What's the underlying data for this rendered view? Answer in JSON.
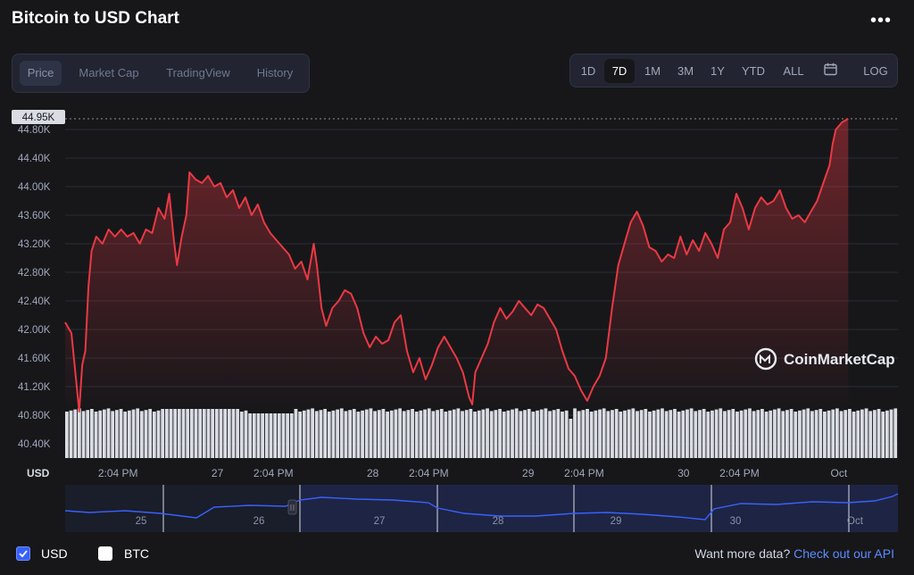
{
  "header": {
    "title": "Bitcoin to USD Chart",
    "more": "•••"
  },
  "tabs": [
    "Price",
    "Market Cap",
    "TradingView",
    "History"
  ],
  "active_tab": "Price",
  "ranges": [
    "1D",
    "7D",
    "1M",
    "3M",
    "1Y",
    "YTD",
    "ALL",
    "LOG"
  ],
  "active_range": "7D",
  "colors": {
    "line": "#ea3943",
    "volume": "#d9dce3",
    "nav_line": "#3861fb",
    "accent": "#3861fb"
  },
  "watermark": "CoinMarketCap",
  "footer": {
    "usd_label": "USD",
    "btc_label": "BTC",
    "want_more": "Want more data?",
    "api_link": "Check out our API"
  },
  "chart_data": {
    "type": "line",
    "y_unit_label": "USD",
    "ylim": [
      40.2,
      44.95
    ],
    "y_ticks": [
      "40.40K",
      "40.80K",
      "41.20K",
      "41.60K",
      "42.00K",
      "42.40K",
      "42.80K",
      "43.20K",
      "43.60K",
      "44.00K",
      "44.40K",
      "44.80K"
    ],
    "current_price_label": "44.95K",
    "current_price": 44.95,
    "x_ticks": [
      {
        "label": "2:04 PM",
        "t": 0.34
      },
      {
        "label": "27",
        "t": 0.98
      },
      {
        "label": "2:04 PM",
        "t": 1.34
      },
      {
        "label": "28",
        "t": 1.98
      },
      {
        "label": "2:04 PM",
        "t": 2.34
      },
      {
        "label": "29",
        "t": 2.98
      },
      {
        "label": "2:04 PM",
        "t": 3.34
      },
      {
        "label": "30",
        "t": 3.98
      },
      {
        "label": "2:04 PM",
        "t": 4.34
      },
      {
        "label": "Oct",
        "t": 4.98
      }
    ],
    "xlim": [
      0,
      5.36
    ],
    "series": [
      {
        "points": [
          [
            0.0,
            42.1
          ],
          [
            0.04,
            41.95
          ],
          [
            0.07,
            41.3
          ],
          [
            0.09,
            40.85
          ],
          [
            0.11,
            41.5
          ],
          [
            0.13,
            41.7
          ],
          [
            0.15,
            42.6
          ],
          [
            0.17,
            43.1
          ],
          [
            0.2,
            43.3
          ],
          [
            0.24,
            43.2
          ],
          [
            0.28,
            43.4
          ],
          [
            0.32,
            43.3
          ],
          [
            0.36,
            43.4
          ],
          [
            0.4,
            43.3
          ],
          [
            0.44,
            43.35
          ],
          [
            0.48,
            43.2
          ],
          [
            0.52,
            43.4
          ],
          [
            0.56,
            43.35
          ],
          [
            0.6,
            43.7
          ],
          [
            0.64,
            43.55
          ],
          [
            0.67,
            43.9
          ],
          [
            0.7,
            43.25
          ],
          [
            0.72,
            42.9
          ],
          [
            0.75,
            43.3
          ],
          [
            0.78,
            43.6
          ],
          [
            0.8,
            44.2
          ],
          [
            0.84,
            44.1
          ],
          [
            0.88,
            44.05
          ],
          [
            0.92,
            44.15
          ],
          [
            0.96,
            44.0
          ],
          [
            1.0,
            44.05
          ],
          [
            1.04,
            43.85
          ],
          [
            1.08,
            43.95
          ],
          [
            1.12,
            43.7
          ],
          [
            1.16,
            43.85
          ],
          [
            1.2,
            43.6
          ],
          [
            1.24,
            43.75
          ],
          [
            1.28,
            43.5
          ],
          [
            1.32,
            43.35
          ],
          [
            1.36,
            43.25
          ],
          [
            1.4,
            43.15
          ],
          [
            1.44,
            43.05
          ],
          [
            1.48,
            42.85
          ],
          [
            1.52,
            42.95
          ],
          [
            1.56,
            42.7
          ],
          [
            1.6,
            43.2
          ],
          [
            1.62,
            42.9
          ],
          [
            1.65,
            42.3
          ],
          [
            1.68,
            42.05
          ],
          [
            1.72,
            42.3
          ],
          [
            1.76,
            42.4
          ],
          [
            1.8,
            42.55
          ],
          [
            1.84,
            42.5
          ],
          [
            1.88,
            42.3
          ],
          [
            1.92,
            41.95
          ],
          [
            1.96,
            41.75
          ],
          [
            2.0,
            41.9
          ],
          [
            2.04,
            41.8
          ],
          [
            2.08,
            41.85
          ],
          [
            2.12,
            42.1
          ],
          [
            2.16,
            42.2
          ],
          [
            2.2,
            41.7
          ],
          [
            2.24,
            41.4
          ],
          [
            2.28,
            41.6
          ],
          [
            2.32,
            41.3
          ],
          [
            2.36,
            41.5
          ],
          [
            2.4,
            41.75
          ],
          [
            2.44,
            41.9
          ],
          [
            2.48,
            41.75
          ],
          [
            2.52,
            41.6
          ],
          [
            2.56,
            41.4
          ],
          [
            2.6,
            41.05
          ],
          [
            2.62,
            40.95
          ],
          [
            2.64,
            41.4
          ],
          [
            2.68,
            41.6
          ],
          [
            2.72,
            41.8
          ],
          [
            2.76,
            42.1
          ],
          [
            2.8,
            42.3
          ],
          [
            2.84,
            42.15
          ],
          [
            2.88,
            42.25
          ],
          [
            2.92,
            42.4
          ],
          [
            2.96,
            42.3
          ],
          [
            3.0,
            42.2
          ],
          [
            3.04,
            42.35
          ],
          [
            3.08,
            42.3
          ],
          [
            3.12,
            42.15
          ],
          [
            3.16,
            42.0
          ],
          [
            3.2,
            41.7
          ],
          [
            3.24,
            41.45
          ],
          [
            3.28,
            41.35
          ],
          [
            3.32,
            41.15
          ],
          [
            3.36,
            41.0
          ],
          [
            3.4,
            41.2
          ],
          [
            3.44,
            41.35
          ],
          [
            3.48,
            41.6
          ],
          [
            3.52,
            42.3
          ],
          [
            3.56,
            42.9
          ],
          [
            3.6,
            43.2
          ],
          [
            3.64,
            43.5
          ],
          [
            3.68,
            43.65
          ],
          [
            3.72,
            43.45
          ],
          [
            3.76,
            43.15
          ],
          [
            3.8,
            43.1
          ],
          [
            3.84,
            42.95
          ],
          [
            3.88,
            43.05
          ],
          [
            3.92,
            43.0
          ],
          [
            3.96,
            43.3
          ],
          [
            4.0,
            43.05
          ],
          [
            4.04,
            43.25
          ],
          [
            4.08,
            43.1
          ],
          [
            4.12,
            43.35
          ],
          [
            4.16,
            43.2
          ],
          [
            4.2,
            43.0
          ],
          [
            4.24,
            43.4
          ],
          [
            4.28,
            43.5
          ],
          [
            4.32,
            43.9
          ],
          [
            4.36,
            43.7
          ],
          [
            4.4,
            43.4
          ],
          [
            4.44,
            43.7
          ],
          [
            4.48,
            43.85
          ],
          [
            4.52,
            43.75
          ],
          [
            4.56,
            43.8
          ],
          [
            4.6,
            43.95
          ],
          [
            4.64,
            43.7
          ],
          [
            4.68,
            43.55
          ],
          [
            4.72,
            43.6
          ],
          [
            4.76,
            43.5
          ],
          [
            4.8,
            43.65
          ],
          [
            4.84,
            43.8
          ],
          [
            4.88,
            44.05
          ],
          [
            4.92,
            44.3
          ],
          [
            4.94,
            44.6
          ],
          [
            4.96,
            44.8
          ],
          [
            4.98,
            44.85
          ],
          [
            5.0,
            44.9
          ],
          [
            5.04,
            44.95
          ]
        ]
      }
    ]
  }
}
